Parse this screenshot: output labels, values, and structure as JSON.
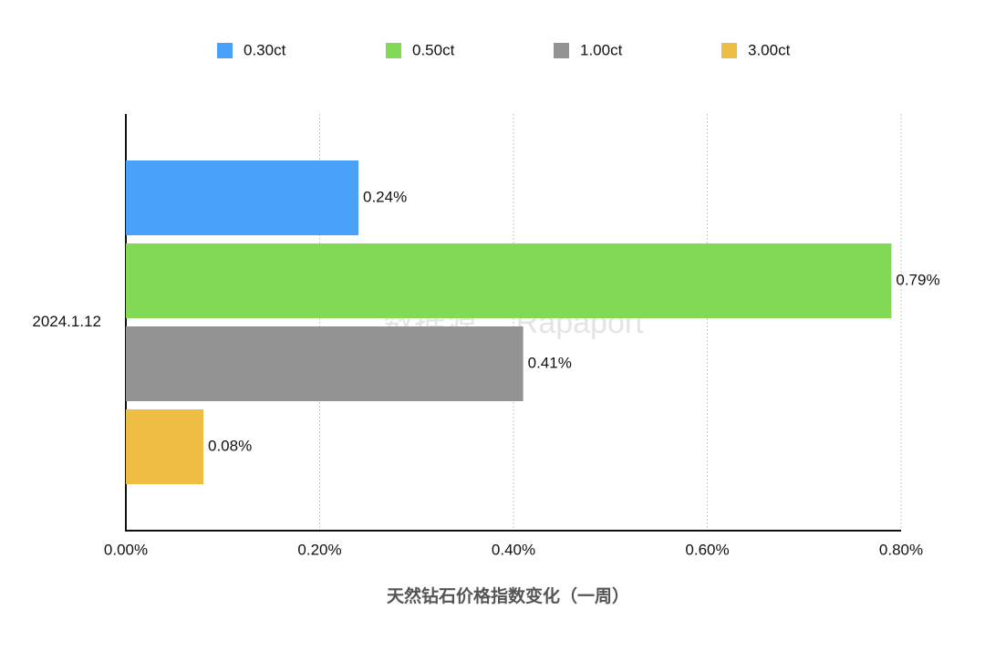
{
  "chart_data": {
    "type": "hbar",
    "categories": [
      "2024.1.12"
    ],
    "series": [
      {
        "name": "0.30ct",
        "color": "#4aa1f8",
        "values": [
          0.24
        ],
        "value_labels": [
          "0.24%"
        ]
      },
      {
        "name": "0.50ct",
        "color": "#82d955",
        "values": [
          0.79
        ],
        "value_labels": [
          "0.79%"
        ]
      },
      {
        "name": "1.00ct",
        "color": "#939393",
        "values": [
          0.41
        ],
        "value_labels": [
          "0.41%"
        ]
      },
      {
        "name": "3.00ct",
        "color": "#eebd43",
        "values": [
          0.08
        ],
        "value_labels": [
          "0.08%"
        ]
      }
    ],
    "xlim": [
      0,
      0.8
    ],
    "xticks": [
      {
        "value": 0,
        "label": "0.00%"
      },
      {
        "value": 0.2,
        "label": "0.20%"
      },
      {
        "value": 0.4,
        "label": "0.40%"
      },
      {
        "value": 0.6,
        "label": "0.60%"
      },
      {
        "value": 0.8,
        "label": "0.80%"
      }
    ],
    "xlabel": "天然钻石价格指数变化（一周）",
    "annotation": "数据源： Rapaport",
    "grid": true,
    "legend": "top"
  }
}
